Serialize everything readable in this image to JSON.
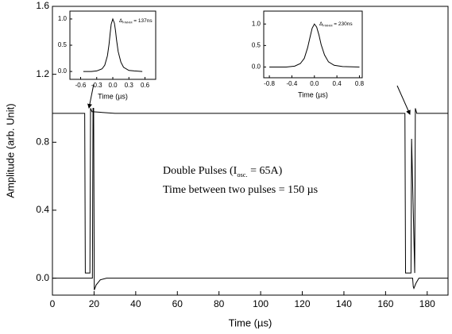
{
  "chart_data": [
    {
      "type": "line",
      "xlabel": "Time (µs)",
      "ylabel": "Amplitude (arb. Unit)",
      "xlim": [
        0,
        190
      ],
      "ylim": [
        -0.1,
        1.6
      ],
      "xticks": [
        0,
        20,
        40,
        60,
        80,
        100,
        120,
        140,
        160,
        180
      ],
      "yticks": [
        {
          "value": 0,
          "label": "0.0"
        },
        0.4,
        0.8,
        1.2,
        1.6
      ],
      "series": [
        {
          "color": "#000000",
          "x": [
            0,
            15.5,
            15.8,
            18.0,
            18.3,
            19,
            30,
            169.3,
            169.6,
            172.2,
            172.5,
            174.0,
            174.3,
            175,
            190
          ],
          "values": [
            0.97,
            0.97,
            0.03,
            0.03,
            1.0,
            0.98,
            0.97,
            0.97,
            0.03,
            0.03,
            0.82,
            0.03,
            1.0,
            0.97,
            0.97
          ]
        },
        {
          "color": "#000000",
          "x": [
            0,
            19.2,
            19.5,
            19.8,
            20.1,
            21,
            23,
            26,
            173.0,
            173.3,
            173.6,
            174.6,
            176,
            190
          ],
          "values": [
            0.0,
            0.0,
            1.0,
            1.0,
            -0.07,
            -0.04,
            -0.01,
            0.0,
            0.0,
            -0.05,
            -0.06,
            -0.03,
            0.0,
            0.0
          ]
        }
      ],
      "annotations": [
        {
          "text": "Double Pulses (I",
          "sub": "osc.",
          "after": " = 65A)"
        },
        {
          "text": "Time between two pulses = 150 µs"
        }
      ]
    },
    {
      "type": "line",
      "xlabel": "Time (µs)",
      "xlim": [
        -0.8,
        0.8
      ],
      "ylim": [
        -0.15,
        1.15
      ],
      "xticks": [
        -0.6,
        -0.3,
        {
          "value": 0,
          "label": "0.0"
        },
        0.3,
        0.6
      ],
      "yticks": [
        {
          "value": 0,
          "label": "0.0"
        },
        0.5,
        {
          "value": 1,
          "label": "1.0"
        }
      ],
      "series": [
        {
          "color": "#000000",
          "x": [
            -0.55,
            -0.4,
            -0.3,
            -0.2,
            -0.15,
            -0.1,
            -0.07,
            -0.05,
            -0.03,
            0,
            0.03,
            0.05,
            0.07,
            0.1,
            0.15,
            0.2,
            0.3,
            0.4,
            0.55
          ],
          "values": [
            0,
            0,
            0.01,
            0.05,
            0.12,
            0.3,
            0.52,
            0.72,
            0.9,
            1.0,
            0.92,
            0.78,
            0.6,
            0.38,
            0.18,
            0.08,
            0.02,
            0.01,
            0
          ]
        }
      ],
      "annotations": [
        {
          "text": "Δ",
          "sub": "FWHM",
          "after": " = 137ns"
        }
      ]
    },
    {
      "type": "line",
      "xlabel": "Time (µs)",
      "xlim": [
        -0.9,
        0.85
      ],
      "ylim": [
        -0.25,
        1.3
      ],
      "xticks": [
        -0.8,
        -0.4,
        {
          "value": 0,
          "label": "0.0"
        },
        0.4,
        0.8
      ],
      "yticks": [
        {
          "value": 0,
          "label": "0.0"
        },
        0.5,
        {
          "value": 1,
          "label": "1.0"
        }
      ],
      "series": [
        {
          "color": "#000000",
          "x": [
            -0.8,
            -0.5,
            -0.35,
            -0.25,
            -0.18,
            -0.12,
            -0.08,
            -0.04,
            0,
            0.04,
            0.08,
            0.12,
            0.18,
            0.25,
            0.35,
            0.5,
            0.8
          ],
          "values": [
            0,
            0,
            0.02,
            0.08,
            0.2,
            0.45,
            0.68,
            0.9,
            1.0,
            0.93,
            0.75,
            0.52,
            0.28,
            0.12,
            0.04,
            0.01,
            0
          ]
        }
      ],
      "annotations": [
        {
          "text": "Δ",
          "sub": "FWHM",
          "after": " = 230ns"
        }
      ]
    }
  ]
}
